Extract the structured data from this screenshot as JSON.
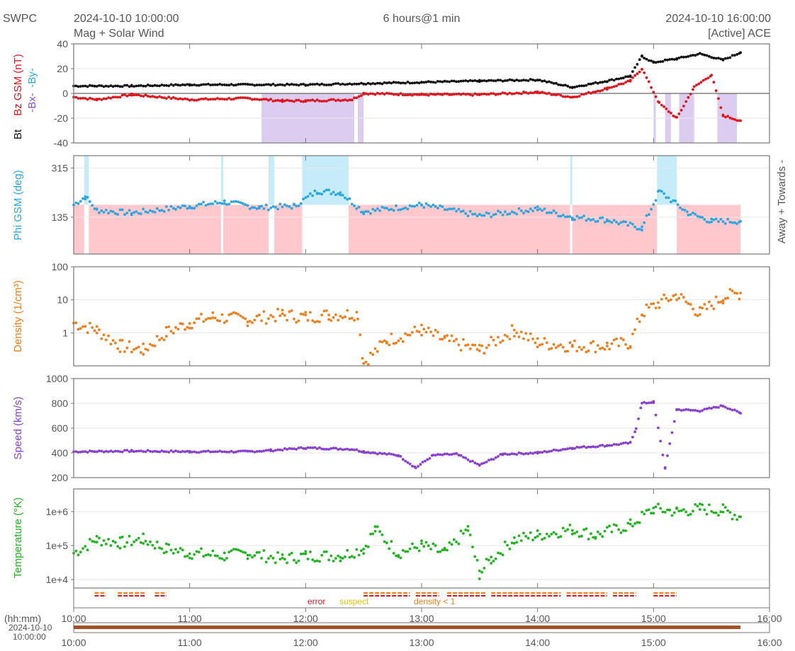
{
  "header": {
    "source": "SWPC",
    "start_time": "2024-10-10 10:00:00",
    "subtitle": "Mag + Solar Wind",
    "span": "6 hours@1 min",
    "end_time": "2024-10-10 16:00:00",
    "spacecraft": "[Active] ACE"
  },
  "colors": {
    "bt": "#111111",
    "bz": "#e0141c",
    "bx": "#8a4fc7",
    "by": "#2aa7e0",
    "phi": "#2aa7e0",
    "away_band": "#ffc8cc",
    "towards_band": "#c6ecfa",
    "density": "#ef7d1a",
    "speed": "#8a3fd1",
    "temperature": "#1fb41f",
    "error": "#e0141c",
    "suspect": "#e6c400",
    "density_lt_1": "#ef7d1a",
    "bx_band": "#dccdf0"
  },
  "chart_data": [
    {
      "type": "scatter",
      "panel": "mag",
      "ylabels": [
        "Bt",
        "Bz GSM (nT)",
        "-Bx-",
        "-By-"
      ],
      "ylim": [
        -40,
        40
      ],
      "yticks": [
        "40",
        "20",
        "0",
        "-20",
        "-40"
      ],
      "grid": true,
      "series": [
        {
          "name": "Bt",
          "x": [
            10.0,
            10.5,
            11.0,
            11.5,
            12.0,
            12.5,
            13.0,
            13.5,
            14.0,
            14.3,
            14.6,
            14.8,
            14.9,
            15.0,
            15.2,
            15.4,
            15.6,
            15.75
          ],
          "y": [
            6,
            6,
            7,
            7,
            7,
            8,
            9,
            10,
            11,
            5,
            10,
            14,
            30,
            25,
            28,
            32,
            27,
            33
          ]
        },
        {
          "name": "Bz GSM",
          "x": [
            10.0,
            10.2,
            10.5,
            11.0,
            11.5,
            11.8,
            12.0,
            12.4,
            12.5,
            13.0,
            13.5,
            14.0,
            14.3,
            14.6,
            14.8,
            14.9,
            15.05,
            15.2,
            15.35,
            15.5,
            15.6,
            15.75
          ],
          "y": [
            -3,
            -5,
            -1,
            -5,
            -4,
            -6,
            -6,
            -5,
            0,
            -1,
            -1,
            1,
            -3,
            4,
            10,
            20,
            -8,
            -20,
            5,
            15,
            -18,
            -22
          ]
        }
      ],
      "bx_shading_intervals": [
        [
          11.62,
          12.42
        ],
        [
          12.45,
          12.5
        ],
        [
          15.0,
          15.02
        ],
        [
          15.1,
          15.15
        ],
        [
          15.22,
          15.35
        ],
        [
          15.55,
          15.72
        ]
      ]
    },
    {
      "type": "scatter",
      "panel": "phi",
      "ylabel": "Phi GSM (deg)",
      "right_label": "Away +   Towards -",
      "yticks": [
        "315",
        "135"
      ],
      "series": [
        {
          "name": "Phi GSM",
          "x": [
            10.0,
            10.1,
            10.2,
            10.5,
            11.0,
            11.3,
            11.6,
            11.9,
            12.1,
            12.3,
            12.5,
            13.0,
            13.5,
            14.0,
            14.3,
            14.6,
            14.9,
            15.05,
            15.3,
            15.5,
            15.75
          ],
          "y": [
            180,
            210,
            160,
            150,
            175,
            190,
            170,
            175,
            230,
            225,
            155,
            180,
            140,
            165,
            135,
            125,
            95,
            230,
            150,
            120,
            120
          ]
        }
      ],
      "towards_intervals": [
        [
          10.09,
          10.13
        ],
        [
          11.27,
          11.29
        ],
        [
          11.68,
          11.73
        ],
        [
          11.97,
          12.37
        ],
        [
          14.28,
          14.3
        ],
        [
          15.03,
          15.2
        ]
      ],
      "away_interval": [
        10.0,
        15.75
      ]
    },
    {
      "type": "scatter",
      "panel": "density",
      "ylabel": "Density (1/cm³)",
      "yscale": "log",
      "ylim": [
        0.1,
        100
      ],
      "yticks": [
        "100",
        "10",
        "1"
      ],
      "series": [
        {
          "name": "Density",
          "x": [
            10.0,
            10.2,
            10.4,
            10.6,
            10.8,
            11.0,
            11.2,
            11.5,
            11.8,
            12.0,
            12.2,
            12.45,
            12.5,
            12.7,
            13.0,
            13.2,
            13.5,
            13.8,
            14.0,
            14.3,
            14.6,
            14.8,
            14.9,
            15.05,
            15.2,
            15.4,
            15.6,
            15.75
          ],
          "y": [
            2,
            1.2,
            0.4,
            0.3,
            1.0,
            2.0,
            3.0,
            2.5,
            3.5,
            3.0,
            3.5,
            3.8,
            0.12,
            0.6,
            1.2,
            0.6,
            0.3,
            1.2,
            0.5,
            0.4,
            0.4,
            0.5,
            4.0,
            8.0,
            14.0,
            4.0,
            12.0,
            16.0
          ]
        }
      ]
    },
    {
      "type": "scatter",
      "panel": "speed",
      "ylabel": "Speed (km/s)",
      "ylim": [
        200,
        1000
      ],
      "yticks": [
        "1000",
        "800",
        "600",
        "400",
        "200"
      ],
      "series": [
        {
          "name": "Speed",
          "x": [
            10.0,
            10.5,
            11.0,
            11.5,
            11.7,
            12.0,
            12.4,
            12.5,
            12.8,
            12.95,
            13.1,
            13.3,
            13.5,
            13.7,
            14.0,
            14.3,
            14.6,
            14.8,
            14.85,
            14.9,
            15.0,
            15.1,
            15.2,
            15.4,
            15.6,
            15.75
          ],
          "y": [
            410,
            415,
            410,
            410,
            420,
            440,
            430,
            410,
            380,
            280,
            380,
            390,
            300,
            390,
            400,
            440,
            460,
            480,
            600,
            800,
            810,
            280,
            750,
            740,
            780,
            720
          ]
        }
      ]
    },
    {
      "type": "scatter",
      "panel": "temperature",
      "ylabel": "Temperature (°K)",
      "yscale": "log",
      "yticks": [
        "1e+6",
        "1e+5",
        "1e+4"
      ],
      "series": [
        {
          "name": "Temperature",
          "x": [
            10.0,
            10.2,
            10.4,
            10.6,
            10.8,
            11.0,
            11.3,
            11.5,
            11.8,
            12.0,
            12.3,
            12.5,
            12.6,
            12.8,
            13.0,
            13.2,
            13.4,
            13.5,
            13.6,
            13.8,
            14.0,
            14.3,
            14.5,
            14.8,
            15.0,
            15.2,
            15.4,
            15.6,
            15.75
          ],
          "y": [
            60000,
            150000,
            120000,
            150000,
            80000,
            60000,
            50000,
            60000,
            40000,
            50000,
            50000,
            80000,
            300000,
            60000,
            100000,
            60000,
            300000,
            15000,
            40000,
            150000,
            200000,
            300000,
            200000,
            400000,
            1200000,
            1000000,
            1200000,
            1100000,
            700000
          ]
        }
      ]
    },
    {
      "type": "table",
      "panel": "quality",
      "legend": [
        "error",
        "suspect",
        "density < 1"
      ]
    }
  ],
  "axis": {
    "xticks": [
      "10:00",
      "11:00",
      "12:00",
      "13:00",
      "14:00",
      "15:00",
      "16:00"
    ],
    "hhmm_label": "(hh:mm)",
    "date_label": "2024-10-10",
    "time_label": "10:00:00"
  }
}
